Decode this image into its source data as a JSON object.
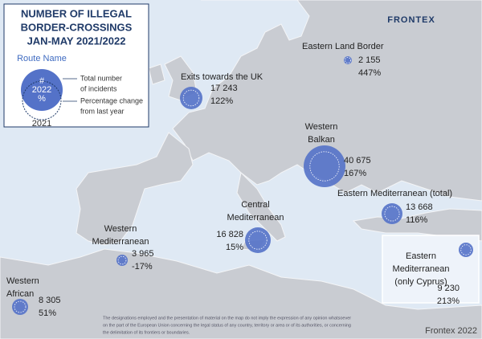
{
  "title_lines": [
    "NUMBER OF ILLEGAL",
    "BORDER-CROSSINGS",
    "JAN-MAY 2021/2022"
  ],
  "brand": "FRONTEX",
  "legend": {
    "route_name": "Route Name",
    "bubble_lines": [
      "#",
      "2022",
      "%"
    ],
    "previous_year": "2021",
    "description_lines": [
      "Total number",
      "of incidents",
      "Percentage change",
      "from last year"
    ]
  },
  "routes": [
    {
      "name_lines": [
        "Eastern Land Border"
      ],
      "incidents": "2 155",
      "change": "447%"
    },
    {
      "name_lines": [
        "Exits towards the UK"
      ],
      "incidents": "17 243",
      "change": "122%"
    },
    {
      "name_lines": [
        "Western",
        "Balkan"
      ],
      "incidents": "40 675",
      "change": "167%"
    },
    {
      "name_lines": [
        "Eastern Mediterranean (total)"
      ],
      "incidents": "13 668",
      "change": "116%"
    },
    {
      "name_lines": [
        "Central",
        "Mediterranean"
      ],
      "incidents": "16 828",
      "change": "15%"
    },
    {
      "name_lines": [
        "Western",
        "Mediterranean"
      ],
      "incidents": "3 965",
      "change": "-17%"
    },
    {
      "name_lines": [
        "Western",
        "African"
      ],
      "incidents": "8 305",
      "change": "51%"
    },
    {
      "name_lines": [
        "Eastern",
        "Mediterranean",
        "(only Cyprus)"
      ],
      "incidents": "9 230",
      "change": "213%"
    }
  ],
  "disclaimer_lines": [
    "The designations employed and the presentation of material on the map do not imply the expression of any opinion whatsoever",
    "on the part of the European Union concerning the legal status of any country, territory or area or of its authorities, or concerning",
    "the delimitation of its frontiers or boundaries."
  ],
  "credit": "Frontex 2022"
}
